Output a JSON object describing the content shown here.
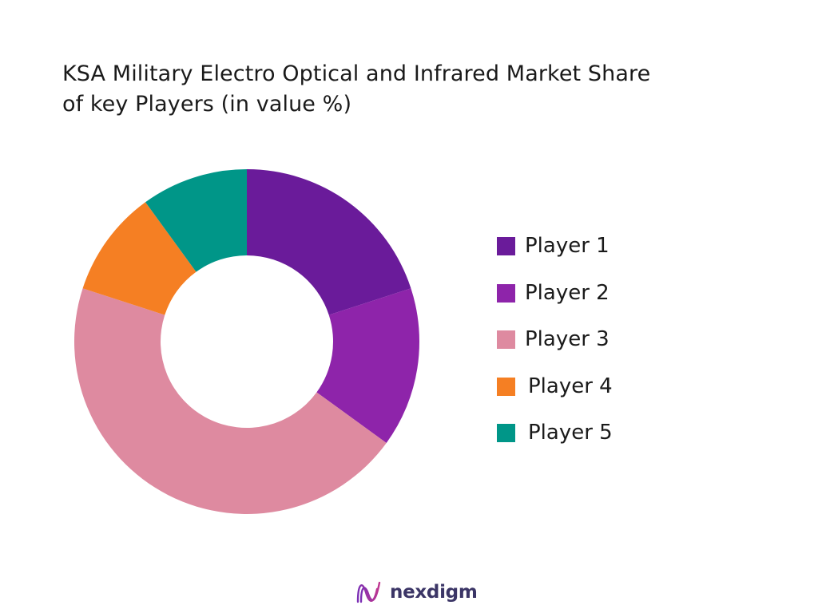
{
  "chart_data": {
    "type": "pie",
    "title_lines": [
      "KSA Military Electro Optical and Infrared Market Share",
      "of key Players (in value %)"
    ],
    "donut": true,
    "categories": [
      "Player 1",
      "Player 2",
      "Player 3",
      "Player 4",
      "Player 5"
    ],
    "values": [
      20,
      15,
      45,
      10,
      10
    ],
    "unit": "%",
    "colors": [
      "#6a1b9a",
      "#8e24aa",
      "#de8aa0",
      "#f57f23",
      "#009688"
    ],
    "legend_position": "right"
  },
  "brand": {
    "name": "nexdigm",
    "logo_icon": "nexdigm-wave-logo",
    "colors": [
      "#7b2fb5",
      "#c0368f"
    ]
  }
}
